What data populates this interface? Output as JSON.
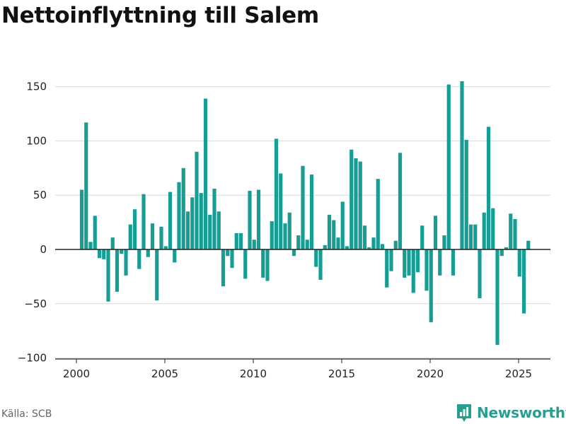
{
  "title": "Nettoinflyttning till Salem",
  "source": "Källa: SCB",
  "brand": {
    "name": "Newsworthy",
    "icon": "newsworthy-logo-icon",
    "color": "#2a9d8f"
  },
  "chart_data": {
    "type": "bar",
    "title": "Nettoinflyttning till Salem",
    "xlabel": "",
    "ylabel": "",
    "ylim": [
      -100,
      170
    ],
    "y_ticks": [
      150,
      100,
      50,
      0,
      -50,
      -100
    ],
    "y_tick_labels": [
      "150",
      "100",
      "50",
      "0",
      "−50",
      "−100"
    ],
    "x_ticks": [
      2000,
      2005,
      2010,
      2015,
      2020,
      2025
    ],
    "x_tick_labels": [
      "2000",
      "2005",
      "2010",
      "2015",
      "2020",
      "2025"
    ],
    "x_start": 2000.3,
    "x_step": 0.25,
    "grid": true,
    "bar_color": "#179e94",
    "series": [
      {
        "values": [
          55,
          117,
          7,
          31,
          -8,
          -9,
          -48,
          11,
          -39,
          -4,
          -24,
          23,
          37,
          -18,
          51,
          -7,
          24,
          -47,
          21,
          3,
          53,
          -12,
          62,
          75,
          35,
          48,
          90,
          52,
          139,
          32,
          56,
          35,
          -34,
          -6,
          -17,
          15,
          15,
          -27,
          54,
          9,
          55,
          -26,
          -29,
          26,
          102,
          70,
          24,
          34,
          -6,
          13,
          77,
          9,
          69,
          -16,
          -28,
          4,
          32,
          27,
          11,
          44,
          3,
          92,
          84,
          81,
          22,
          2,
          11,
          65,
          5,
          -35,
          -20,
          8,
          89,
          -26,
          -24,
          -40,
          -21,
          22,
          -38,
          -67,
          31,
          -24,
          13,
          152,
          -24,
          0,
          155,
          101,
          23,
          23,
          -45,
          34,
          113,
          38,
          -88,
          -6,
          2,
          33,
          28,
          -25,
          -59,
          8
        ]
      }
    ]
  }
}
